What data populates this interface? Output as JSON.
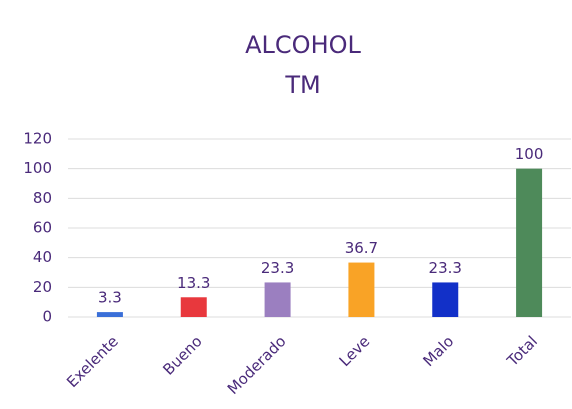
{
  "chart_data": {
    "type": "bar",
    "title": [
      "ALCOHOL",
      "TM"
    ],
    "categories": [
      "Exelente",
      "Bueno",
      "Moderado",
      "Leve",
      "Malo",
      "Total"
    ],
    "values": [
      3.3,
      13.3,
      23.3,
      36.7,
      23.3,
      100
    ],
    "colors": [
      "#3a6fd8",
      "#e8383d",
      "#9b7fc0",
      "#f9a326",
      "#1230c8",
      "#4e8a5a"
    ],
    "ylim": [
      0,
      120
    ],
    "yticks": [
      0,
      20,
      40,
      60,
      80,
      100,
      120
    ],
    "grid": true
  }
}
